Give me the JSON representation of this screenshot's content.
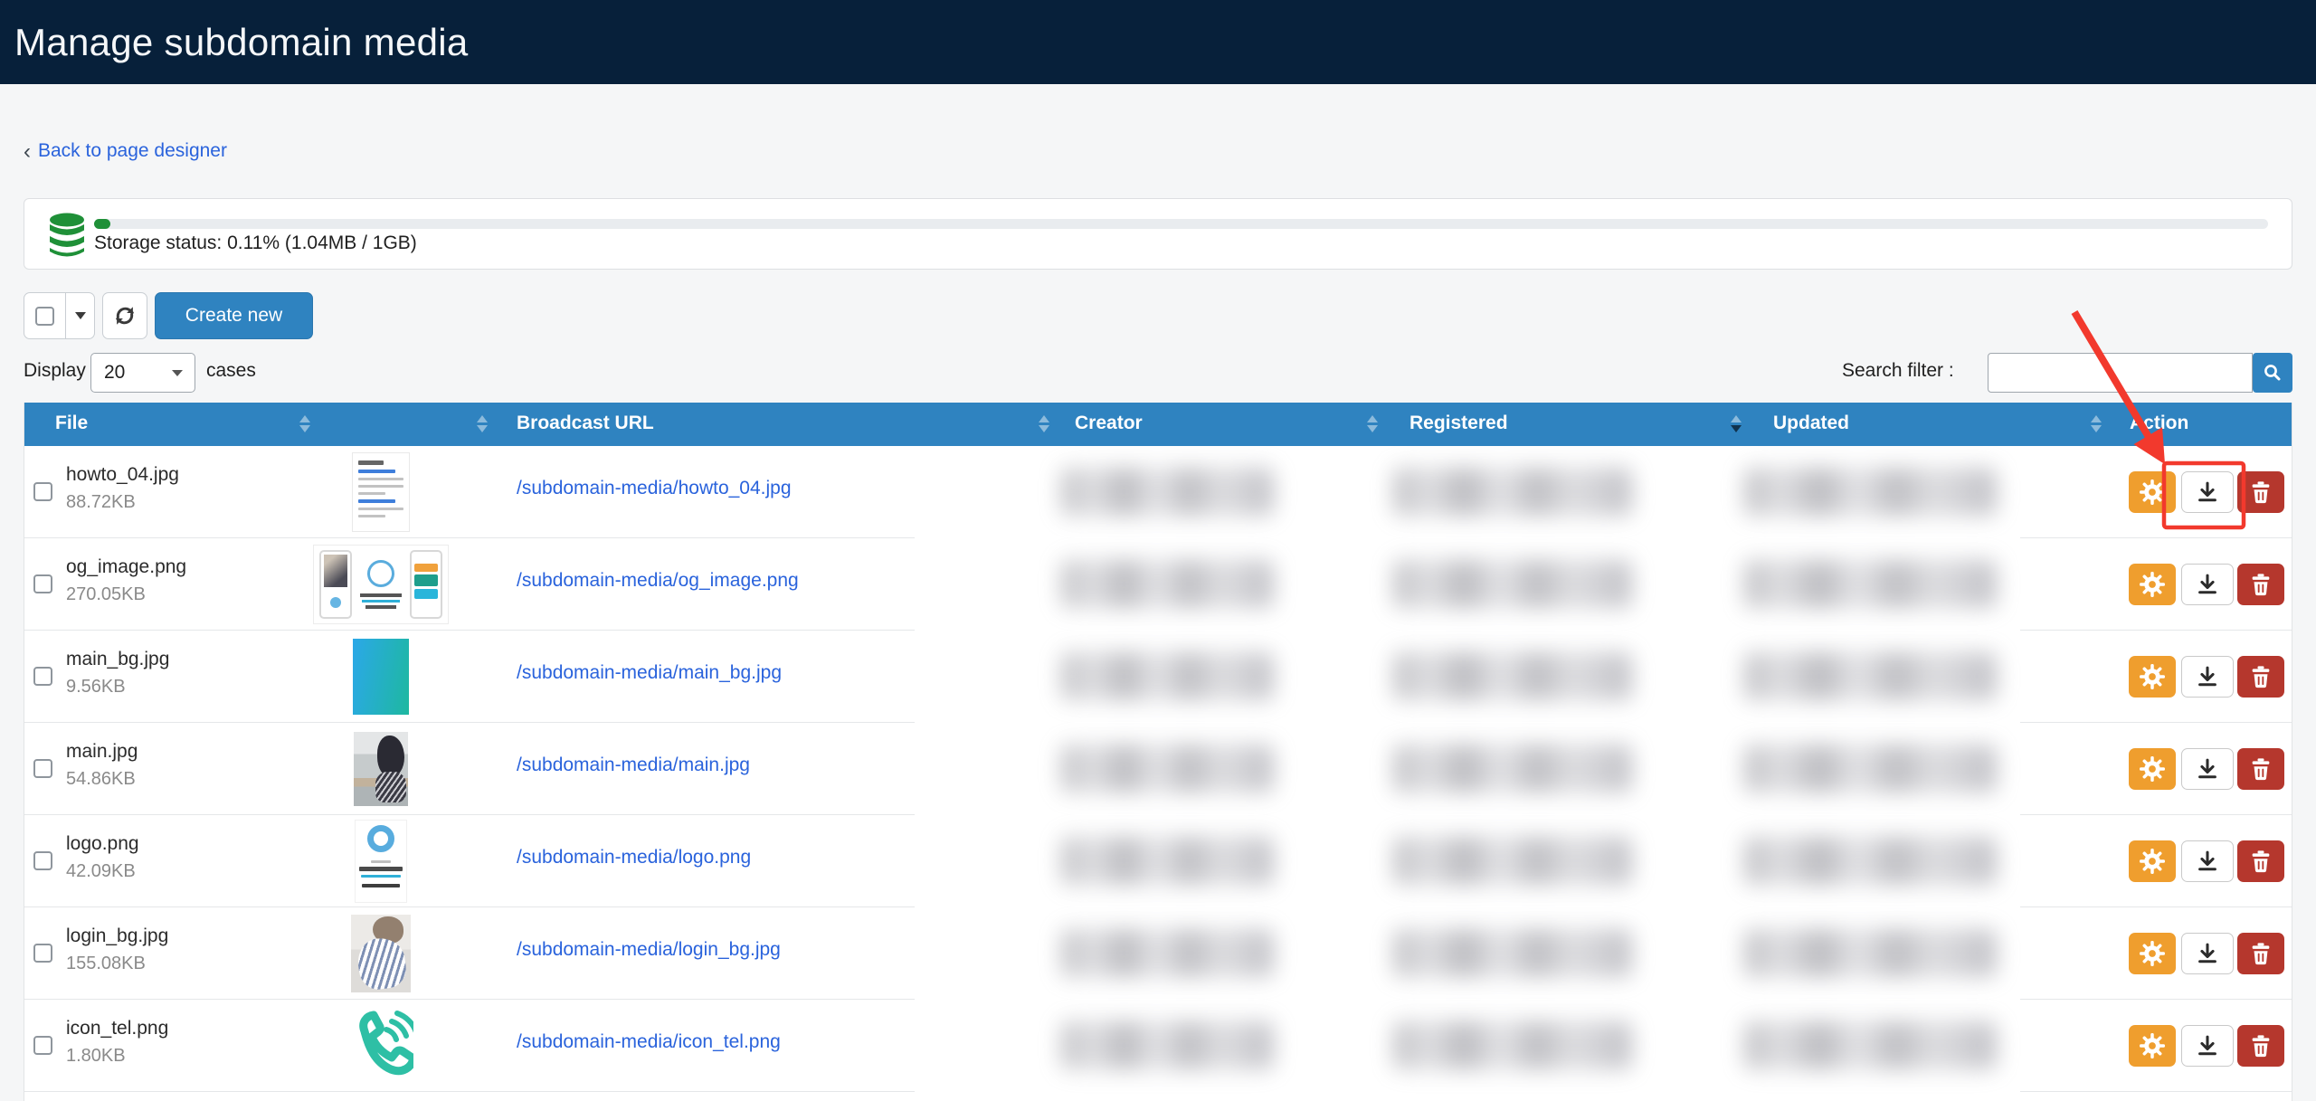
{
  "page": {
    "title": "Manage subdomain media"
  },
  "colors": {
    "navbar": "#07203A",
    "primary_blue": "#2F83C0",
    "link_blue": "#2A63DC",
    "gear_orange": "#EF9E2E",
    "delete_red": "#B5372D",
    "annotation_red": "#F2392D",
    "storage_green": "#1F9038"
  },
  "back_link": {
    "chevron": "‹",
    "label": "Back to page designer"
  },
  "storage": {
    "status_text": "Storage status: 0.11% (1.04MB / 1GB)",
    "percent_used": 0.11,
    "used": "1.04MB",
    "total": "1GB"
  },
  "toolbar": {
    "create_label": "Create new"
  },
  "display_control": {
    "prefix": "Display",
    "selected": "20",
    "suffix": "cases"
  },
  "search": {
    "label": "Search filter :",
    "value": ""
  },
  "table": {
    "columns": [
      "File",
      "Broadcast URL",
      "Creator",
      "Registered",
      "Updated",
      "Action"
    ],
    "sort": {
      "column": "Registered",
      "direction": "desc"
    },
    "redacted_columns": [
      "Creator",
      "Registered",
      "Updated"
    ],
    "rows": [
      {
        "file": "howto_04.jpg",
        "size": "88.72KB",
        "url": "/subdomain-media/howto_04.jpg",
        "thumb": "document-preview"
      },
      {
        "file": "og_image.png",
        "size": "270.05KB",
        "url": "/subdomain-media/og_image.png",
        "thumb": "og-card-preview"
      },
      {
        "file": "main_bg.jpg",
        "size": "9.56KB",
        "url": "/subdomain-media/main_bg.jpg",
        "thumb": "gradient-preview"
      },
      {
        "file": "main.jpg",
        "size": "54.86KB",
        "url": "/subdomain-media/main.jpg",
        "thumb": "desk-photo-preview"
      },
      {
        "file": "logo.png",
        "size": "42.09KB",
        "url": "/subdomain-media/logo.png",
        "thumb": "logo-preview"
      },
      {
        "file": "login_bg.jpg",
        "size": "155.08KB",
        "url": "/subdomain-media/login_bg.jpg",
        "thumb": "phone-photo-preview"
      },
      {
        "file": "icon_tel.png",
        "size": "1.80KB",
        "url": "/subdomain-media/icon_tel.png",
        "thumb": "tel-icon-preview"
      }
    ]
  },
  "annotation": {
    "type": "arrow-and-box",
    "target": "download-button-row-1"
  }
}
